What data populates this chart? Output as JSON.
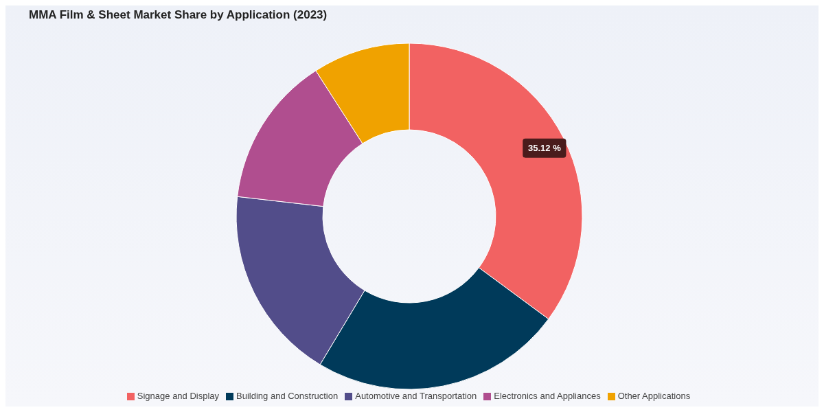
{
  "chart_data": {
    "type": "donut",
    "title": "MMA Film & Sheet Market Share by Application (2023)",
    "categories": [
      "Signage and Display",
      "Building and Construction",
      "Automotive and Transportation",
      "Electronics and Appliances",
      "Other Applications"
    ],
    "values": [
      35.12,
      23.5,
      18.2,
      14.1,
      9.08
    ],
    "colors": [
      "#f26262",
      "#003a5a",
      "#524d8a",
      "#b04e8f",
      "#f0a200"
    ],
    "value_labels": [
      "35.12 %",
      null,
      null,
      null,
      null
    ],
    "legend": "bottom"
  }
}
